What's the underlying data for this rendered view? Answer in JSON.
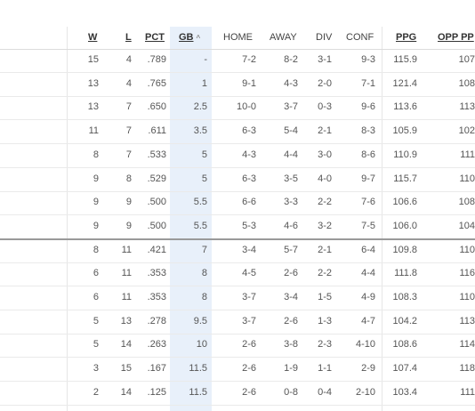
{
  "columns": [
    {
      "key": "w",
      "label": "W"
    },
    {
      "key": "l",
      "label": "L"
    },
    {
      "key": "pct",
      "label": "PCT"
    },
    {
      "key": "gb",
      "label": "GB"
    },
    {
      "key": "home",
      "label": "HOME"
    },
    {
      "key": "away",
      "label": "AWAY"
    },
    {
      "key": "div",
      "label": "DIV"
    },
    {
      "key": "conf",
      "label": "CONF"
    },
    {
      "key": "ppg",
      "label": "PPG"
    },
    {
      "key": "opp_ppg",
      "label": "OPP PP"
    }
  ],
  "sort_arrow": "^",
  "rows": [
    [
      "15",
      "4",
      ".789",
      "-",
      "7-2",
      "8-2",
      "3-1",
      "9-3",
      "115.9",
      "107"
    ],
    [
      "13",
      "4",
      ".765",
      "1",
      "9-1",
      "4-3",
      "2-0",
      "7-1",
      "121.4",
      "108"
    ],
    [
      "13",
      "7",
      ".650",
      "2.5",
      "10-0",
      "3-7",
      "0-3",
      "9-6",
      "113.6",
      "113"
    ],
    [
      "11",
      "7",
      ".611",
      "3.5",
      "6-3",
      "5-4",
      "2-1",
      "8-3",
      "105.9",
      "102"
    ],
    [
      "8",
      "7",
      ".533",
      "5",
      "4-3",
      "4-4",
      "3-0",
      "8-6",
      "110.9",
      "111"
    ],
    [
      "9",
      "8",
      ".529",
      "5",
      "6-3",
      "3-5",
      "4-0",
      "9-7",
      "115.7",
      "110"
    ],
    [
      "9",
      "9",
      ".500",
      "5.5",
      "6-6",
      "3-3",
      "2-2",
      "7-6",
      "106.6",
      "108"
    ],
    [
      "9",
      "9",
      ".500",
      "5.5",
      "5-3",
      "4-6",
      "3-2",
      "7-5",
      "106.0",
      "104"
    ],
    [
      "8",
      "11",
      ".421",
      "7",
      "3-4",
      "5-7",
      "2-1",
      "6-4",
      "109.8",
      "110"
    ],
    [
      "6",
      "11",
      ".353",
      "8",
      "4-5",
      "2-6",
      "2-2",
      "4-4",
      "111.8",
      "116"
    ],
    [
      "6",
      "11",
      ".353",
      "8",
      "3-7",
      "3-4",
      "1-5",
      "4-9",
      "108.3",
      "110"
    ],
    [
      "5",
      "13",
      ".278",
      "9.5",
      "3-7",
      "2-6",
      "1-3",
      "4-7",
      "104.2",
      "113"
    ],
    [
      "5",
      "14",
      ".263",
      "10",
      "2-6",
      "3-8",
      "2-3",
      "4-10",
      "108.6",
      "114"
    ],
    [
      "3",
      "15",
      ".167",
      "11.5",
      "2-6",
      "1-9",
      "1-1",
      "2-9",
      "107.4",
      "118"
    ],
    [
      "2",
      "14",
      ".125",
      "11.5",
      "2-6",
      "0-8",
      "0-4",
      "2-10",
      "103.4",
      "111"
    ]
  ]
}
